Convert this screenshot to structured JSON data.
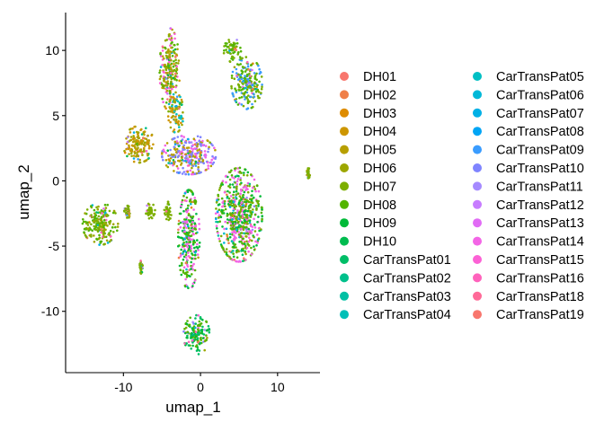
{
  "chart_data": {
    "type": "scatter",
    "title": "",
    "xlabel": "umap_1",
    "ylabel": "umap_2",
    "xlim": [
      -17.5,
      15.5
    ],
    "ylim": [
      -14.7,
      12.9
    ],
    "x_ticks": [
      -10,
      0,
      10
    ],
    "x_tick_labels": [
      "-10",
      "0",
      "10"
    ],
    "y_ticks": [
      -10,
      -5,
      0,
      5,
      10
    ],
    "y_tick_labels": [
      "-10",
      "-5",
      "0",
      "5",
      "10"
    ],
    "grid": false,
    "legend_position": "right",
    "legend_columns": 2,
    "series": [
      {
        "name": "DH01",
        "color": "#F8766D"
      },
      {
        "name": "DH02",
        "color": "#EF7F48"
      },
      {
        "name": "DH03",
        "color": "#DE8C00"
      },
      {
        "name": "DH04",
        "color": "#CD9600"
      },
      {
        "name": "DH05",
        "color": "#B79F00"
      },
      {
        "name": "DH06",
        "color": "#9DA700"
      },
      {
        "name": "DH07",
        "color": "#7CAE00"
      },
      {
        "name": "DH08",
        "color": "#53B400"
      },
      {
        "name": "DH09",
        "color": "#00BA38"
      },
      {
        "name": "DH10",
        "color": "#00BC4F"
      },
      {
        "name": "CarTransPat01",
        "color": "#00BE67"
      },
      {
        "name": "CarTransPat02",
        "color": "#00C08B"
      },
      {
        "name": "CarTransPat03",
        "color": "#00C0A4"
      },
      {
        "name": "CarTransPat04",
        "color": "#00BFB7"
      },
      {
        "name": "CarTransPat05",
        "color": "#00BFC4"
      },
      {
        "name": "CarTransPat06",
        "color": "#00B8D8"
      },
      {
        "name": "CarTransPat07",
        "color": "#00B0E6"
      },
      {
        "name": "CarTransPat08",
        "color": "#00A5F5"
      },
      {
        "name": "CarTransPat09",
        "color": "#3A9CFF"
      },
      {
        "name": "CarTransPat10",
        "color": "#7F84FF"
      },
      {
        "name": "CarTransPat11",
        "color": "#A58AFF"
      },
      {
        "name": "CarTransPat12",
        "color": "#C77CFF"
      },
      {
        "name": "CarTransPat13",
        "color": "#E16BF5"
      },
      {
        "name": "CarTransPat14",
        "color": "#F365E6"
      },
      {
        "name": "CarTransPat15",
        "color": "#FC61D5"
      },
      {
        "name": "CarTransPat16",
        "color": "#FF62BC"
      },
      {
        "name": "CarTransPat18",
        "color": "#FF6A98"
      },
      {
        "name": "CarTransPat19",
        "color": "#F8766D"
      }
    ],
    "clusters": [
      {
        "center": [
          -4,
          8.5
        ],
        "spread": [
          1.3,
          3.2
        ],
        "dominant": [
          "#9DA700",
          "#7CAE00",
          "#53B400",
          "#B79F00",
          "#FC61D5"
        ]
      },
      {
        "center": [
          -3.2,
          5.2
        ],
        "spread": [
          1.0,
          1.5
        ],
        "dominant": [
          "#9DA700",
          "#CD9600",
          "#00BFC4"
        ]
      },
      {
        "center": [
          6,
          7.5
        ],
        "spread": [
          2.0,
          2.0
        ],
        "dominant": [
          "#53B400",
          "#7CAE00",
          "#3A9CFF"
        ]
      },
      {
        "center": [
          4.2,
          10
        ],
        "spread": [
          1.2,
          0.9
        ],
        "dominant": [
          "#53B400",
          "#7CAE00"
        ]
      },
      {
        "center": [
          -8,
          2.8
        ],
        "spread": [
          2.0,
          1.4
        ],
        "dominant": [
          "#B79F00",
          "#CD9600",
          "#9DA700"
        ]
      },
      {
        "center": [
          5.0,
          -2.6
        ],
        "spread": [
          3.0,
          3.6
        ],
        "dominant": [
          "#00BA38",
          "#53B400",
          "#7CAE00",
          "#F365E6"
        ]
      },
      {
        "center": [
          -13,
          -3.3
        ],
        "spread": [
          2.3,
          1.6
        ],
        "dominant": [
          "#7CAE00",
          "#9DA700",
          "#53B400"
        ]
      },
      {
        "center": [
          -0.5,
          -11.8
        ],
        "spread": [
          1.7,
          1.5
        ],
        "dominant": [
          "#00BA38",
          "#00BE67",
          "#53B400"
        ]
      },
      {
        "center": [
          -1.5,
          -4.5
        ],
        "spread": [
          1.4,
          3.8
        ],
        "dominant": [
          "#53B400",
          "#F365E6",
          "#00BA38"
        ]
      },
      {
        "center": [
          -1.5,
          2.0
        ],
        "spread": [
          3.5,
          1.5
        ],
        "dominant": [
          "#7F84FF",
          "#F365E6",
          "#B79F00"
        ]
      },
      {
        "center": [
          -9.5,
          -2.4
        ],
        "spread": [
          0.4,
          0.5
        ],
        "dominant": [
          "#7CAE00"
        ]
      },
      {
        "center": [
          -6.5,
          -2.3
        ],
        "spread": [
          0.6,
          0.6
        ],
        "dominant": [
          "#7CAE00"
        ]
      },
      {
        "center": [
          -4.2,
          -2.3
        ],
        "spread": [
          0.5,
          0.7
        ],
        "dominant": [
          "#7CAE00"
        ]
      },
      {
        "center": [
          -7.7,
          -6.6
        ],
        "spread": [
          0.2,
          0.5
        ],
        "dominant": [
          "#7CAE00"
        ]
      },
      {
        "center": [
          14,
          0.6
        ],
        "spread": [
          0.2,
          0.4
        ],
        "dominant": [
          "#7CAE00"
        ]
      }
    ]
  }
}
